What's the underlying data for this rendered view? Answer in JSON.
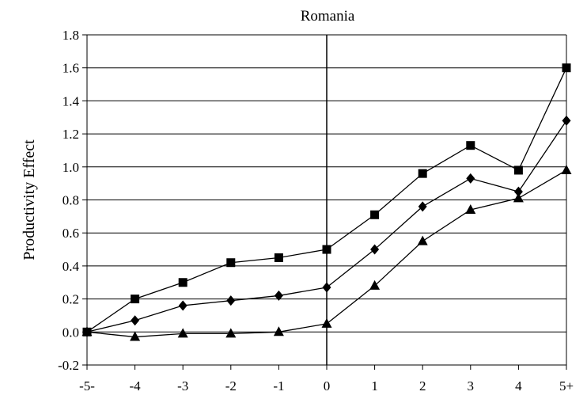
{
  "chart_data": {
    "type": "line",
    "title": "Romania",
    "xlabel": "",
    "ylabel": "Productivity Effect",
    "categories": [
      "-5-",
      "-4",
      "-3",
      "-2",
      "-1",
      "0",
      "1",
      "2",
      "3",
      "4",
      "5+"
    ],
    "ylim": [
      -0.2,
      1.8
    ],
    "yticks": [
      "-0.2",
      "0.0",
      "0.2",
      "0.4",
      "0.6",
      "0.8",
      "1.0",
      "1.2",
      "1.4",
      "1.6",
      "1.8"
    ],
    "grid": "horizontal",
    "reference_line_at": "0",
    "series": [
      {
        "marker": "square",
        "values": [
          0.0,
          0.2,
          0.3,
          0.42,
          0.45,
          0.5,
          0.71,
          0.96,
          1.13,
          0.98,
          1.6
        ]
      },
      {
        "marker": "diamond",
        "values": [
          0.0,
          0.07,
          0.16,
          0.19,
          0.22,
          0.27,
          0.5,
          0.76,
          0.93,
          0.85,
          1.28
        ]
      },
      {
        "marker": "triangle",
        "values": [
          0.0,
          -0.03,
          -0.01,
          -0.01,
          0.0,
          0.05,
          0.28,
          0.55,
          0.74,
          0.81,
          0.98
        ]
      }
    ]
  }
}
